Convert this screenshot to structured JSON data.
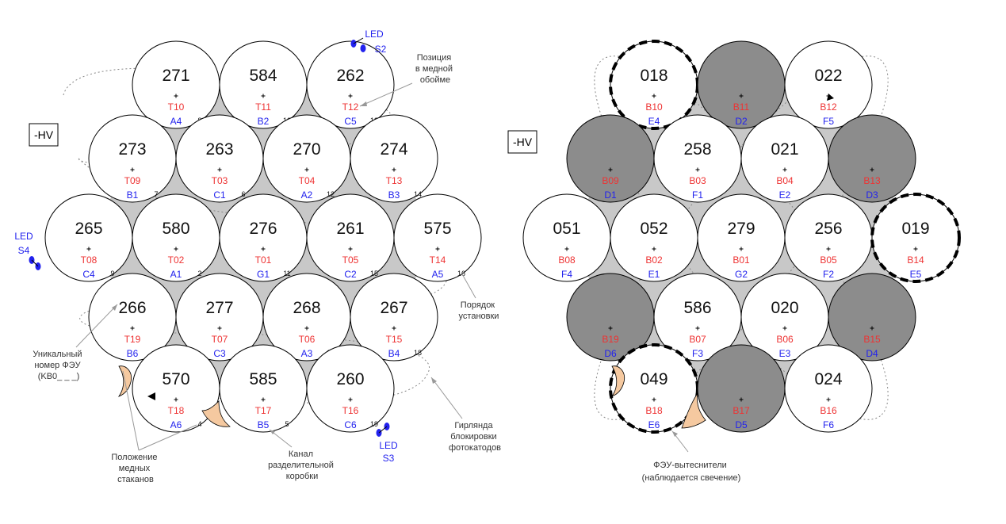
{
  "left_panel": {
    "hv_label": "-HV",
    "cells": [
      {
        "row": 0,
        "col": 0,
        "id": "271",
        "pos": "T10",
        "ch": "A4",
        "order": "8"
      },
      {
        "row": 0,
        "col": 1,
        "id": "584",
        "pos": "T11",
        "ch": "B2",
        "order": "10"
      },
      {
        "row": 0,
        "col": 2,
        "id": "262",
        "pos": "T12",
        "ch": "C5",
        "order": "13"
      },
      {
        "row": 1,
        "col": 0,
        "id": "273",
        "pos": "T09",
        "ch": "B1",
        "order": "7"
      },
      {
        "row": 1,
        "col": 1,
        "id": "263",
        "pos": "T03",
        "ch": "C1",
        "order": "6"
      },
      {
        "row": 1,
        "col": 2,
        "id": "270",
        "pos": "T04",
        "ch": "A2",
        "order": "12"
      },
      {
        "row": 1,
        "col": 3,
        "id": "274",
        "pos": "T13",
        "ch": "B3",
        "order": "14"
      },
      {
        "row": 2,
        "col": 0,
        "id": "265",
        "pos": "T08",
        "ch": "C4",
        "order": "9"
      },
      {
        "row": 2,
        "col": 1,
        "id": "580",
        "pos": "T02",
        "ch": "A1",
        "order": "2"
      },
      {
        "row": 2,
        "col": 2,
        "id": "276",
        "pos": "T01",
        "ch": "G1",
        "order": "11"
      },
      {
        "row": 2,
        "col": 3,
        "id": "261",
        "pos": "T05",
        "ch": "C2",
        "order": "15"
      },
      {
        "row": 2,
        "col": 4,
        "id": "575",
        "pos": "T14",
        "ch": "A5",
        "order": "16"
      },
      {
        "row": 3,
        "col": 0,
        "id": "266",
        "pos": "T19",
        "ch": "B6",
        "order": "3"
      },
      {
        "row": 3,
        "col": 1,
        "id": "277",
        "pos": "T07",
        "ch": "C3",
        "order": "1"
      },
      {
        "row": 3,
        "col": 2,
        "id": "268",
        "pos": "T06",
        "ch": "A3",
        "order": "17"
      },
      {
        "row": 3,
        "col": 3,
        "id": "267",
        "pos": "T15",
        "ch": "B4",
        "order": "18"
      },
      {
        "row": 4,
        "col": 0,
        "id": "570",
        "pos": "T18",
        "ch": "A6",
        "order": "4"
      },
      {
        "row": 4,
        "col": 1,
        "id": "585",
        "pos": "T17",
        "ch": "B5",
        "order": "5"
      },
      {
        "row": 4,
        "col": 2,
        "id": "260",
        "pos": "T16",
        "ch": "C6",
        "order": "19"
      }
    ],
    "leds": [
      {
        "name": "LED",
        "id": "S2"
      },
      {
        "name": "LED",
        "id": "S4"
      },
      {
        "name": "LED",
        "id": "S3"
      }
    ],
    "annotations": {
      "copper_position": [
        "Позиция",
        "в медной",
        "обойме"
      ],
      "install_order": [
        "Порядок",
        "установки"
      ],
      "unique_pmt": [
        "Уникальный",
        "номер ФЭУ",
        "(KB0_ _ _)"
      ],
      "copper_cups": [
        "Положение",
        "медных",
        "стаканов"
      ],
      "splitter_channel": [
        "Канал",
        "разделительной",
        "коробки"
      ],
      "garland": [
        "Гирлянда",
        "блокировки",
        "фотокатодов"
      ]
    }
  },
  "right_panel": {
    "hv_label": "-HV",
    "cells": [
      {
        "row": 0,
        "col": 0,
        "id": "018",
        "pos": "B10",
        "ch": "E4",
        "state": "dashed"
      },
      {
        "row": 0,
        "col": 1,
        "id": "",
        "pos": "B11",
        "ch": "D2",
        "state": "gray"
      },
      {
        "row": 0,
        "col": 2,
        "id": "022",
        "pos": "B12",
        "ch": "F5",
        "state": "normal"
      },
      {
        "row": 1,
        "col": 0,
        "id": "",
        "pos": "B09",
        "ch": "D1",
        "state": "gray"
      },
      {
        "row": 1,
        "col": 1,
        "id": "258",
        "pos": "B03",
        "ch": "F1",
        "state": "normal"
      },
      {
        "row": 1,
        "col": 2,
        "id": "021",
        "pos": "B04",
        "ch": "E2",
        "state": "normal"
      },
      {
        "row": 1,
        "col": 3,
        "id": "",
        "pos": "B13",
        "ch": "D3",
        "state": "gray"
      },
      {
        "row": 2,
        "col": 0,
        "id": "051",
        "pos": "B08",
        "ch": "F4",
        "state": "normal"
      },
      {
        "row": 2,
        "col": 1,
        "id": "052",
        "pos": "B02",
        "ch": "E1",
        "state": "normal"
      },
      {
        "row": 2,
        "col": 2,
        "id": "279",
        "pos": "B01",
        "ch": "G2",
        "state": "normal"
      },
      {
        "row": 2,
        "col": 3,
        "id": "256",
        "pos": "B05",
        "ch": "F2",
        "state": "normal"
      },
      {
        "row": 2,
        "col": 4,
        "id": "019",
        "pos": "B14",
        "ch": "E5",
        "state": "dashed"
      },
      {
        "row": 3,
        "col": 0,
        "id": "",
        "pos": "B19",
        "ch": "D6",
        "state": "gray"
      },
      {
        "row": 3,
        "col": 1,
        "id": "586",
        "pos": "B07",
        "ch": "F3",
        "state": "normal"
      },
      {
        "row": 3,
        "col": 2,
        "id": "020",
        "pos": "B06",
        "ch": "E3",
        "state": "normal"
      },
      {
        "row": 3,
        "col": 3,
        "id": "",
        "pos": "B15",
        "ch": "D4",
        "state": "gray"
      },
      {
        "row": 4,
        "col": 0,
        "id": "049",
        "pos": "B18",
        "ch": "E6",
        "state": "dashed"
      },
      {
        "row": 4,
        "col": 1,
        "id": "",
        "pos": "B17",
        "ch": "D5",
        "state": "gray"
      },
      {
        "row": 4,
        "col": 2,
        "id": "024",
        "pos": "B16",
        "ch": "F6",
        "state": "normal"
      }
    ],
    "annotations": {
      "fillers": [
        "ФЭУ-вытеснители",
        "(наблюдается свечение)"
      ]
    }
  },
  "colors": {
    "pos_text": "#ee3333",
    "ch_text": "#2222ee",
    "led_blue": "#2222ee",
    "gray_fill": "#8c8c8c",
    "gap_fill": "#c8c8c8",
    "copper": "#f5c9a0",
    "line": "#000000",
    "dotted": "#888888",
    "annotation_text": "#333333"
  }
}
